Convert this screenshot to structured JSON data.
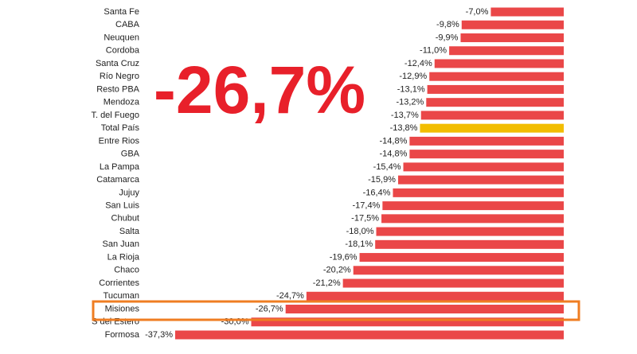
{
  "chart_data": {
    "type": "hbar",
    "annotation": "-26,7%",
    "categories": [
      "Santa Fe",
      "CABA",
      "Neuquen",
      "Cordoba",
      "Santa Cruz",
      "Río Negro",
      "Resto PBA",
      "Mendoza",
      "T. del Fuego",
      "Total País",
      "Entre Rios",
      "GBA",
      "La Pampa",
      "Catamarca",
      "Jujuy",
      "San Luis",
      "Chubut",
      "Salta",
      "San Juan",
      "La Rioja",
      "Chaco",
      "Corrientes",
      "Tucuman",
      "Misiones",
      "S del Estero",
      "Formosa"
    ],
    "values": [
      -7.0,
      -9.8,
      -9.9,
      -11.0,
      -12.4,
      -12.9,
      -13.1,
      -13.2,
      -13.7,
      -13.8,
      -14.8,
      -14.8,
      -15.4,
      -15.9,
      -16.4,
      -17.4,
      -17.5,
      -18.0,
      -18.1,
      -19.6,
      -20.2,
      -21.2,
      -24.7,
      -26.7,
      -30.0,
      -37.3
    ],
    "value_labels": [
      "-7,0%",
      "-9,8%",
      "-9,9%",
      "-11,0%",
      "-12,4%",
      "-12,9%",
      "-13,1%",
      "-13,2%",
      "-13,7%",
      "-13,8%",
      "-14,8%",
      "-14,8%",
      "-15,4%",
      "-15,9%",
      "-16,4%",
      "-17,4%",
      "-17,5%",
      "-18,0%",
      "-18,1%",
      "-19,6%",
      "-20,2%",
      "-21,2%",
      "-24,7%",
      "-26,7%",
      "-30,0%",
      "-37,3%"
    ],
    "colors": [
      "#ea4748",
      "#ea4748",
      "#ea4748",
      "#ea4748",
      "#ea4748",
      "#ea4748",
      "#ea4748",
      "#ea4748",
      "#ea4748",
      "#f2bd00",
      "#ea4748",
      "#ea4748",
      "#ea4748",
      "#ea4748",
      "#ea4748",
      "#ea4748",
      "#ea4748",
      "#ea4748",
      "#ea4748",
      "#ea4748",
      "#ea4748",
      "#ea4748",
      "#ea4748",
      "#ea4748",
      "#ea4748",
      "#ea4748"
    ]
  }
}
